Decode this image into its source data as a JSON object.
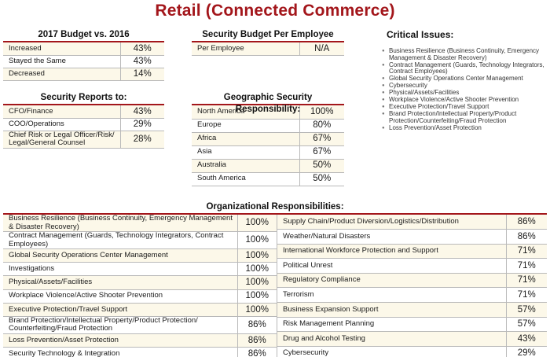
{
  "title": "Retail (Connected Commerce)",
  "colors": {
    "accent": "#a3161b",
    "row_shade": "#fcf8e9"
  },
  "budget": {
    "title": "2017 Budget vs. 2016",
    "rows": [
      {
        "label": "Increased",
        "value": "43%"
      },
      {
        "label": "Stayed the Same",
        "value": "43%"
      },
      {
        "label": "Decreased",
        "value": "14%"
      }
    ]
  },
  "budget_per_employee": {
    "title": "Security Budget Per Employee",
    "rows": [
      {
        "label": "Per Employee",
        "value": "N/A"
      }
    ]
  },
  "critical_issues": {
    "title": "Critical Issues:",
    "items": [
      "Business Resilience (Business Continuity, Emergency Management & Disaster Recovery)",
      "Contract Management (Guards, Technology Integrators, Contract Employees)",
      "Global Security Operations Center Management",
      "Cybersecurity",
      "Physical/Assets/Facilities",
      "Workplace Violence/Active Shooter Prevention",
      "Executive Protection/Travel Support",
      "Brand Protection/Intellectual Property/Product Protection/Counterfeiting/Fraud Protection",
      "Loss Prevention/Asset Protection"
    ]
  },
  "reports_to": {
    "title": "Security Reports to:",
    "rows": [
      {
        "label": "CFO/Finance",
        "value": "43%"
      },
      {
        "label": "COO/Operations",
        "value": "29%"
      },
      {
        "label": "Chief Risk or Legal Officer/Risk/ Legal/General Counsel",
        "value": "28%"
      }
    ]
  },
  "geographic": {
    "title": "Geographic Security Responsibility:",
    "rows": [
      {
        "label": "North America",
        "value": "100%"
      },
      {
        "label": "Europe",
        "value": "80%"
      },
      {
        "label": "Africa",
        "value": "67%"
      },
      {
        "label": "Asia",
        "value": "67%"
      },
      {
        "label": "Australia",
        "value": "50%"
      },
      {
        "label": "South America",
        "value": "50%"
      }
    ]
  },
  "org_responsibilities": {
    "title": "Organizational Responsibilities:",
    "left": [
      {
        "label": "Business Resilience (Business Continuity, Emergency Management & Disaster Recovery)",
        "value": "100%"
      },
      {
        "label": "Contract Management (Guards, Technology Integrators, Contract Employees)",
        "value": "100%"
      },
      {
        "label": "Global Security Operations Center Management",
        "value": "100%"
      },
      {
        "label": "Investigations",
        "value": "100%"
      },
      {
        "label": "Physical/Assets/Facilities",
        "value": "100%"
      },
      {
        "label": "Workplace Violence/Active Shooter Prevention",
        "value": "100%"
      },
      {
        "label": "Executive Protection/Travel Support",
        "value": "100%"
      },
      {
        "label": "Brand Protection/Intellectual Property/Product Protection/ Counterfeiting/Fraud Protection",
        "value": "86%"
      },
      {
        "label": "Loss Prevention/Asset Protection",
        "value": "86%"
      },
      {
        "label": "Security Technology & Integration",
        "value": "86%"
      }
    ],
    "right": [
      {
        "label": "Supply Chain/Product Diversion/Logistics/Distribution",
        "value": "86%"
      },
      {
        "label": "Weather/Natural Disasters",
        "value": "86%"
      },
      {
        "label": "International Workforce Protection and Support",
        "value": "71%"
      },
      {
        "label": "Political Unrest",
        "value": "71%"
      },
      {
        "label": "Regulatory Compliance",
        "value": "71%"
      },
      {
        "label": "Terrorism",
        "value": "71%"
      },
      {
        "label": "Business Expansion Support",
        "value": "57%"
      },
      {
        "label": "Risk Management Planning",
        "value": "57%"
      },
      {
        "label": "Drug and Alcohol Testing",
        "value": "43%"
      },
      {
        "label": "Cybersecurity",
        "value": "29%"
      }
    ]
  }
}
